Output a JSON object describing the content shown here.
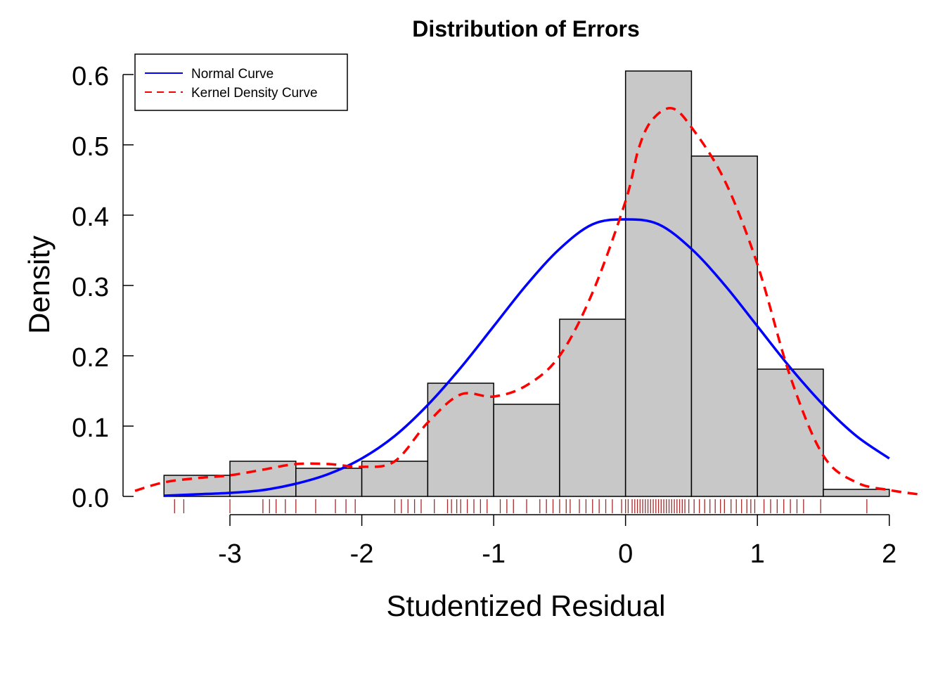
{
  "chart_data": {
    "type": "histogram",
    "title": "Distribution of Errors",
    "xlabel": "Studentized Residual",
    "ylabel": "Density",
    "xlim": [
      -3.72,
      2.22
    ],
    "ylim": [
      0,
      0.6
    ],
    "x_ticks": [
      -3,
      -2,
      -1,
      0,
      1,
      2
    ],
    "x_tick_labels": [
      "-3",
      "-2",
      "-1",
      "0",
      "1",
      "2"
    ],
    "y_ticks": [
      0,
      0.1,
      0.2,
      0.3,
      0.4,
      0.5,
      0.6
    ],
    "y_tick_labels": [
      "0.0",
      "0.1",
      "0.2",
      "0.3",
      "0.4",
      "0.5",
      "0.6"
    ],
    "bins": [
      {
        "x0": -3.5,
        "x1": -3.0,
        "density": 0.03
      },
      {
        "x0": -3.0,
        "x1": -2.5,
        "density": 0.05
      },
      {
        "x0": -2.5,
        "x1": -2.0,
        "density": 0.04
      },
      {
        "x0": -2.0,
        "x1": -1.5,
        "density": 0.05
      },
      {
        "x0": -1.5,
        "x1": -1.0,
        "density": 0.161
      },
      {
        "x0": -1.0,
        "x1": -0.5,
        "density": 0.131
      },
      {
        "x0": -0.5,
        "x1": 0.0,
        "density": 0.252
      },
      {
        "x0": 0.0,
        "x1": 0.5,
        "density": 0.605
      },
      {
        "x0": 0.5,
        "x1": 1.0,
        "density": 0.484
      },
      {
        "x0": 1.0,
        "x1": 1.5,
        "density": 0.181
      },
      {
        "x0": 1.5,
        "x1": 2.0,
        "density": 0.01
      }
    ],
    "bar_fill": "#c8c8c8",
    "series": [
      {
        "name": "Normal Curve",
        "color": "#0000ff",
        "style": "solid",
        "x": [
          -3.5,
          -3.25,
          -3.0,
          -2.75,
          -2.5,
          -2.25,
          -2.0,
          -1.75,
          -1.5,
          -1.25,
          -1.0,
          -0.75,
          -0.5,
          -0.25,
          0.0,
          0.25,
          0.5,
          0.75,
          1.0,
          1.25,
          1.5,
          1.75,
          2.0
        ],
        "y": [
          0.001,
          0.003,
          0.005,
          0.009,
          0.018,
          0.032,
          0.054,
          0.086,
          0.13,
          0.183,
          0.242,
          0.301,
          0.352,
          0.387,
          0.394,
          0.387,
          0.352,
          0.301,
          0.242,
          0.183,
          0.13,
          0.086,
          0.054
        ]
      },
      {
        "name": "Kernel Density Curve",
        "color": "#ff0000",
        "style": "dashed",
        "x": [
          -3.72,
          -3.5,
          -3.25,
          -3.0,
          -2.75,
          -2.5,
          -2.25,
          -2.0,
          -1.75,
          -1.5,
          -1.25,
          -1.0,
          -0.75,
          -0.5,
          -0.25,
          0.0,
          0.1,
          0.2,
          0.35,
          0.5,
          0.75,
          1.0,
          1.25,
          1.5,
          1.75,
          2.0,
          2.22
        ],
        "y": [
          0.008,
          0.02,
          0.026,
          0.03,
          0.038,
          0.046,
          0.046,
          0.042,
          0.05,
          0.105,
          0.145,
          0.142,
          0.158,
          0.2,
          0.29,
          0.42,
          0.495,
          0.535,
          0.552,
          0.525,
          0.45,
          0.33,
          0.17,
          0.058,
          0.02,
          0.009,
          0.003
        ]
      }
    ],
    "rug": {
      "color": "#a52a2a",
      "x": [
        -3.42,
        -3.35,
        -3.0,
        -2.75,
        -2.7,
        -2.65,
        -2.58,
        -2.5,
        -2.35,
        -2.2,
        -2.12,
        -2.05,
        -1.75,
        -1.7,
        -1.65,
        -1.6,
        -1.55,
        -1.45,
        -1.35,
        -1.32,
        -1.28,
        -1.25,
        -1.2,
        -1.15,
        -1.1,
        -1.05,
        -0.95,
        -0.9,
        -0.85,
        -0.75,
        -0.65,
        -0.6,
        -0.55,
        -0.5,
        -0.45,
        -0.42,
        -0.35,
        -0.3,
        -0.25,
        -0.2,
        -0.15,
        -0.1,
        -0.03,
        0.0,
        0.02,
        0.05,
        0.07,
        0.09,
        0.11,
        0.13,
        0.15,
        0.17,
        0.19,
        0.21,
        0.23,
        0.25,
        0.27,
        0.29,
        0.31,
        0.33,
        0.35,
        0.37,
        0.39,
        0.41,
        0.43,
        0.45,
        0.48,
        0.52,
        0.56,
        0.6,
        0.64,
        0.68,
        0.72,
        0.75,
        0.8,
        0.84,
        0.88,
        0.92,
        0.95,
        0.98,
        1.05,
        1.1,
        1.15,
        1.2,
        1.25,
        1.3,
        1.35,
        1.48,
        1.83
      ]
    },
    "legend": {
      "position": "top-left",
      "entries": [
        {
          "label": "Normal Curve",
          "color": "#0000ff",
          "style": "solid"
        },
        {
          "label": "Kernel Density Curve",
          "color": "#ff0000",
          "style": "dashed"
        }
      ]
    },
    "grid": false
  }
}
